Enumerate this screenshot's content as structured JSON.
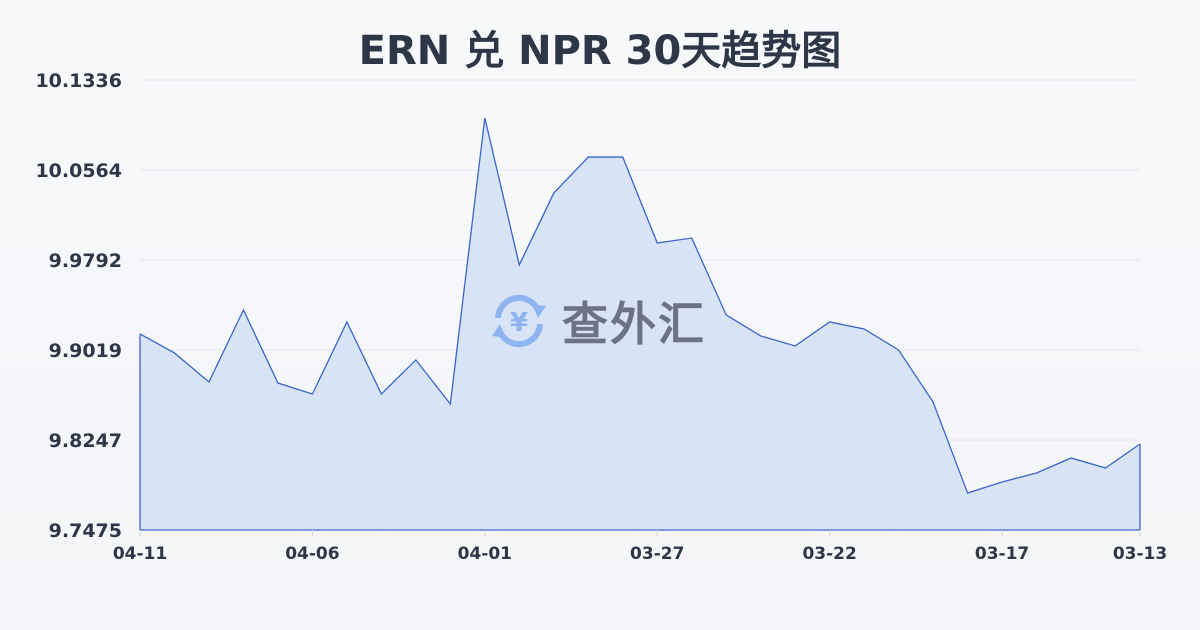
{
  "chart_data": {
    "type": "area",
    "title": "ERN 兑 NPR 30天趋势图",
    "xlabel": "",
    "ylabel": "",
    "x": [
      "04-11",
      "04-10",
      "04-09",
      "04-08",
      "04-07",
      "04-06",
      "04-05",
      "04-04",
      "04-03",
      "04-02",
      "04-01",
      "03-31",
      "03-30",
      "03-29",
      "03-28",
      "03-27",
      "03-26",
      "03-25",
      "03-24",
      "03-23",
      "03-22",
      "03-21",
      "03-20",
      "03-19",
      "03-18",
      "03-17",
      "03-16",
      "03-15",
      "03-14",
      "03-13"
    ],
    "values": [
      9.9157,
      9.8994,
      9.8745,
      9.9363,
      9.8736,
      9.8642,
      9.926,
      9.8642,
      9.8934,
      9.8556,
      10.101,
      9.9749,
      10.0366,
      10.0675,
      10.0675,
      9.9937,
      9.998,
      9.932,
      9.914,
      9.9054,
      9.926,
      9.92,
      9.9019,
      9.8573,
      9.7792,
      9.7887,
      9.7964,
      9.8093,
      9.8007,
      9.8213
    ],
    "xticks": [
      "04-11",
      "04-06",
      "04-01",
      "03-27",
      "03-22",
      "03-17",
      "03-13"
    ],
    "yticks": [
      "10.1336",
      "10.0564",
      "9.9792",
      "9.9019",
      "9.8247",
      "9.7475"
    ],
    "ylim": [
      9.7475,
      10.1336
    ],
    "grid": true,
    "colors": {
      "line": "#3a66c9",
      "fill": "#d6e1f5"
    }
  },
  "watermark": {
    "text": "查外汇",
    "icon": "yen-exchange-icon"
  }
}
